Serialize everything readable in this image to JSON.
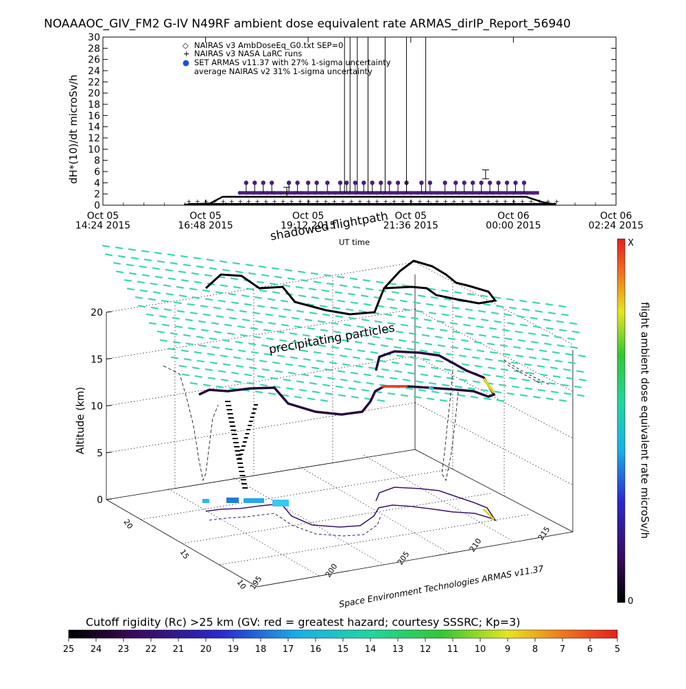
{
  "chart_data": [
    {
      "type": "line",
      "title": "NOAAAOC_GIV_FM2 G-IV   N49RF  ambient dose equivalent rate ARMAS_dirIP_Report_56940",
      "ylabel": "dH*(10)/dt microSv/h",
      "xlabel": "UT time",
      "ylim": [
        0,
        30
      ],
      "yticks": [
        "0",
        "2",
        "4",
        "6",
        "8",
        "10",
        "12",
        "14",
        "16",
        "18",
        "20",
        "22",
        "24",
        "26",
        "28",
        "30"
      ],
      "xticks": [
        {
          "l1": "Oct 05",
          "l2": "14:24 2015"
        },
        {
          "l1": "Oct 05",
          "l2": "16:48 2015"
        },
        {
          "l1": "Oct 05",
          "l2": "19:12 2015"
        },
        {
          "l1": "Oct 05",
          "l2": "21:36 2015"
        },
        {
          "l1": "Oct 06",
          "l2": "00:00 2015"
        },
        {
          "l1": "Oct 06",
          "l2": "02:24 2015"
        }
      ],
      "x_hours": [
        0,
        2.4,
        4.8,
        7.2,
        9.6,
        12.0
      ],
      "legend": [
        {
          "symbol": "◇",
          "label": "NAIRAS v3 AmbDoseEq_G0.txt SEP=0"
        },
        {
          "symbol": "+",
          "label": "NAIRAS v3 NASA LaRC runs"
        },
        {
          "symbol": "●",
          "label": "SET ARMAS v11.37 with 27% 1-sigma uncertainty",
          "color": "#1f4fd6"
        },
        {
          "symbol": "",
          "label": "average NAIRAS v2 31% 1-sigma uncertainty"
        }
      ],
      "series": [
        {
          "name": "NAIRAS v3 AmbDoseEq_G0.txt SEP=0",
          "start_h": 1.9,
          "end_h": 10.6,
          "cruise_value": 1.5
        },
        {
          "name": "NAIRAS v3 NASA LaRC runs",
          "start_h": 2.0,
          "end_h": 10.6,
          "cruise_value": 0.2
        },
        {
          "name": "SET ARMAS v11.37 with 27% 1-sigma uncertainty",
          "color": "#4b1d7a",
          "start_h": 3.2,
          "end_h": 10.2,
          "baseline": 2.2,
          "spike_level": 4.0
        },
        {
          "name": "average NAIRAS v2 31% 1-sigma uncertainty",
          "start_h": 5.6,
          "end_h": 7.8,
          "spike_level": 30
        }
      ]
    },
    {
      "type": "scatter",
      "zlabel": "Altitude (km)",
      "zticks": [
        "0",
        "5",
        "10",
        "15",
        "20"
      ],
      "zlim": [
        0,
        20
      ],
      "xticks": [
        "195",
        "200",
        "205",
        "210",
        "215"
      ],
      "yticks": [
        "10",
        "15",
        "20"
      ],
      "texts": [
        "shadowed flightpath",
        "precipitating particles",
        "Space Environment Technologies ARMAS v11.37"
      ]
    },
    {
      "type": "heatmap",
      "label": "flight ambient dose equivalent rate microSv/h",
      "top": "X",
      "bottom": "0"
    },
    {
      "type": "heatmap",
      "label": "Cutoff rigidity (Rc) >25 km (GV: red = greatest hazard; courtesy SSSRC; Kp=3)",
      "ticks": [
        "25",
        "24",
        "23",
        "22",
        "21",
        "20",
        "19",
        "18",
        "17",
        "16",
        "15",
        "14",
        "13",
        "12",
        "11",
        "10",
        "9",
        "8",
        "7",
        "6",
        "5"
      ]
    }
  ]
}
